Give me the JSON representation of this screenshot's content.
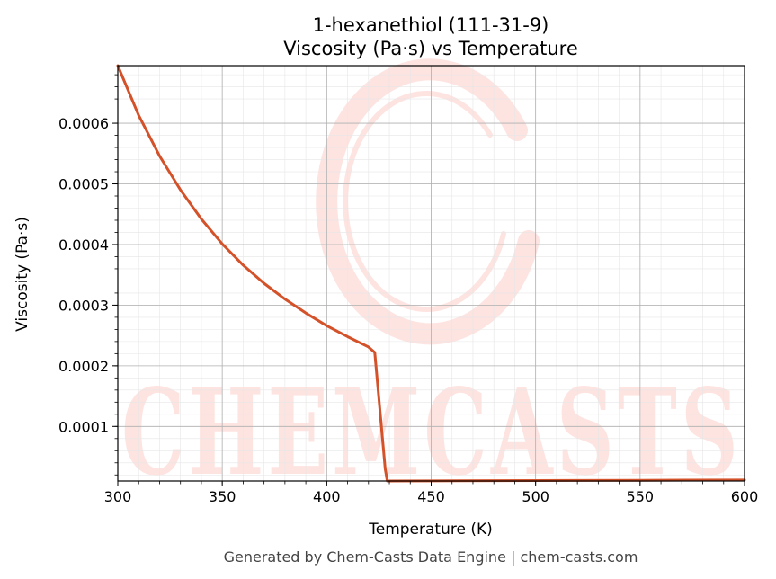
{
  "chart_data": {
    "type": "line",
    "title_lines": [
      "1-hexanethiol (111-31-9)",
      "Viscosity (Pa·s) vs Temperature"
    ],
    "xlabel": "Temperature (K)",
    "ylabel": "Viscosity (Pa·s)",
    "xlim": [
      300,
      600
    ],
    "ylim": [
      1e-05,
      0.000695
    ],
    "x_ticks": [
      300,
      350,
      400,
      450,
      500,
      550,
      600
    ],
    "x_tick_labels": [
      "300",
      "350",
      "400",
      "450",
      "500",
      "550",
      "600"
    ],
    "y_ticks": [
      0.0001,
      0.0002,
      0.0003,
      0.0004,
      0.0005,
      0.0006
    ],
    "y_tick_labels": [
      "0.0001",
      "0.0002",
      "0.0003",
      "0.0004",
      "0.0005",
      "0.0006"
    ],
    "grid": true,
    "line_color": "#d4522a",
    "series": [
      {
        "x": [
          300,
          310,
          320,
          330,
          340,
          350,
          360,
          370,
          380,
          390,
          400,
          410,
          420,
          423,
          428,
          429,
          450,
          500,
          550,
          600
        ],
        "y": [
          0.000695,
          0.000613,
          0.000546,
          0.00049,
          0.000442,
          0.000401,
          0.000366,
          0.000336,
          0.00031,
          0.000287,
          0.000266,
          0.000248,
          0.000231,
          0.000222,
          3e-05,
          1e-05,
          1.02e-05,
          1.07e-05,
          1.12e-05,
          1.17e-05
        ]
      }
    ]
  },
  "watermark": {
    "text": "CHEMCASTS",
    "color": "#fde0dc"
  },
  "footer": "Generated by Chem-Casts Data Engine | chem-casts.com"
}
